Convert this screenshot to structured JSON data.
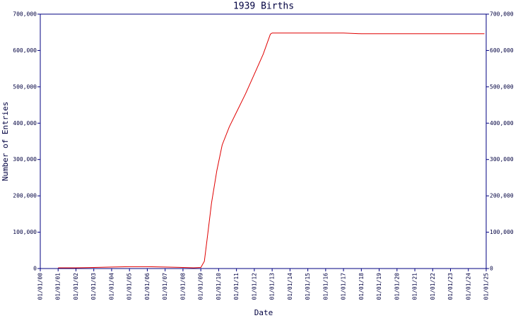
{
  "chart_data": {
    "type": "line",
    "title": "1939 Births",
    "xlabel": "Date",
    "ylabel": "Number of Entries",
    "x": [
      1,
      2,
      3,
      4,
      5,
      6,
      7,
      8,
      8.6,
      9,
      9.2,
      9.4,
      9.6,
      9.9,
      10.2,
      10.6,
      11,
      11.5,
      12,
      12.5,
      12.9,
      13,
      14,
      15,
      16,
      17,
      18,
      19,
      20,
      21,
      22,
      23,
      24,
      24.9
    ],
    "series": [
      {
        "name": "Entries",
        "color": "#e00000",
        "values": [
          2000,
          2000,
          3000,
          4000,
          5000,
          5000,
          4000,
          3000,
          2000,
          3000,
          20000,
          100000,
          180000,
          270000,
          340000,
          390000,
          430000,
          480000,
          535000,
          590000,
          645000,
          648000,
          648000,
          648000,
          648000,
          648000,
          646000,
          646000,
          646000,
          646000,
          646000,
          646000,
          646000,
          646000
        ]
      }
    ],
    "xlim": [
      0,
      25
    ],
    "xticks": [
      {
        "value": 0,
        "label": "01/01/00"
      },
      {
        "value": 1,
        "label": "01/01/01"
      },
      {
        "value": 2,
        "label": "01/01/02"
      },
      {
        "value": 3,
        "label": "01/01/03"
      },
      {
        "value": 4,
        "label": "01/01/04"
      },
      {
        "value": 5,
        "label": "01/01/05"
      },
      {
        "value": 6,
        "label": "01/01/06"
      },
      {
        "value": 7,
        "label": "01/01/07"
      },
      {
        "value": 8,
        "label": "01/01/08"
      },
      {
        "value": 9,
        "label": "01/01/09"
      },
      {
        "value": 10,
        "label": "01/01/10"
      },
      {
        "value": 11,
        "label": "01/01/11"
      },
      {
        "value": 12,
        "label": "01/01/12"
      },
      {
        "value": 13,
        "label": "01/01/13"
      },
      {
        "value": 14,
        "label": "01/01/14"
      },
      {
        "value": 15,
        "label": "01/01/15"
      },
      {
        "value": 16,
        "label": "01/01/16"
      },
      {
        "value": 17,
        "label": "01/01/17"
      },
      {
        "value": 18,
        "label": "01/01/18"
      },
      {
        "value": 19,
        "label": "01/01/19"
      },
      {
        "value": 20,
        "label": "01/01/20"
      },
      {
        "value": 21,
        "label": "01/01/21"
      },
      {
        "value": 22,
        "label": "01/01/22"
      },
      {
        "value": 23,
        "label": "01/01/23"
      },
      {
        "value": 24,
        "label": "01/01/24"
      },
      {
        "value": 25,
        "label": "01/01/25"
      }
    ],
    "ylim": [
      0,
      700000
    ],
    "yticks": [
      0,
      {
        "value": 100000,
        "label": "100,000"
      },
      {
        "value": 200000,
        "label": "200,000"
      },
      {
        "value": 300000,
        "label": "300,000"
      },
      {
        "value": 400000,
        "label": "400,000"
      },
      {
        "value": 500000,
        "label": "500,000"
      },
      {
        "value": 600000,
        "label": "600,000"
      },
      {
        "value": 700000,
        "label": "700,000"
      }
    ]
  }
}
